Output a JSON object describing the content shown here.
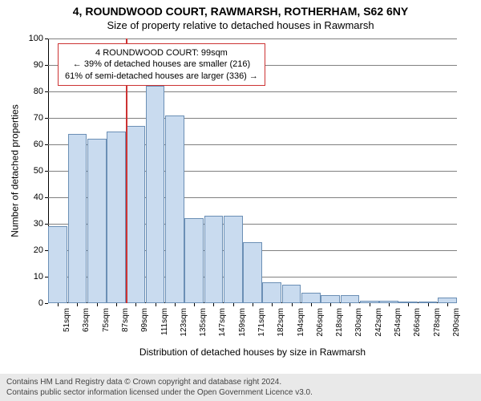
{
  "header": {
    "address": "4, ROUNDWOOD COURT, RAWMARSH, ROTHERHAM, S62 6NY",
    "subtitle": "Size of property relative to detached houses in Rawmarsh"
  },
  "info_box": {
    "line1": "4 ROUNDWOOD COURT: 99sqm",
    "line2": "← 39% of detached houses are smaller (216)",
    "line3": "61% of semi-detached houses are larger (336) →",
    "border_color": "#cc3333",
    "bg_color": "#ffffff",
    "font_size": 11
  },
  "chart": {
    "type": "histogram",
    "y_label": "Number of detached properties",
    "x_label": "Distribution of detached houses by size in Rawmarsh",
    "ylim": [
      0,
      100
    ],
    "ytick_step": 10,
    "x_categories": [
      "51sqm",
      "63sqm",
      "75sqm",
      "87sqm",
      "99sqm",
      "111sqm",
      "123sqm",
      "135sqm",
      "147sqm",
      "159sqm",
      "171sqm",
      "182sqm",
      "194sqm",
      "206sqm",
      "218sqm",
      "230sqm",
      "242sqm",
      "254sqm",
      "266sqm",
      "278sqm",
      "290sqm"
    ],
    "values": [
      29,
      64,
      62,
      65,
      67,
      82,
      71,
      32,
      33,
      33,
      23,
      8,
      7,
      4,
      3,
      3,
      1,
      1,
      0,
      0,
      2
    ],
    "bar_fill": "#c9dbef",
    "bar_border": "#6b8fb5",
    "grid_color": "#808080",
    "marker_index": 4,
    "marker_color": "#cc3333",
    "background_color": "#ffffff",
    "label_fontsize": 12,
    "tick_fontsize": 11
  },
  "footer": {
    "line1": "Contains HM Land Registry data © Crown copyright and database right 2024.",
    "line2": "Contains public sector information licensed under the Open Government Licence v3.0.",
    "bg_color": "#e9e9e9"
  }
}
